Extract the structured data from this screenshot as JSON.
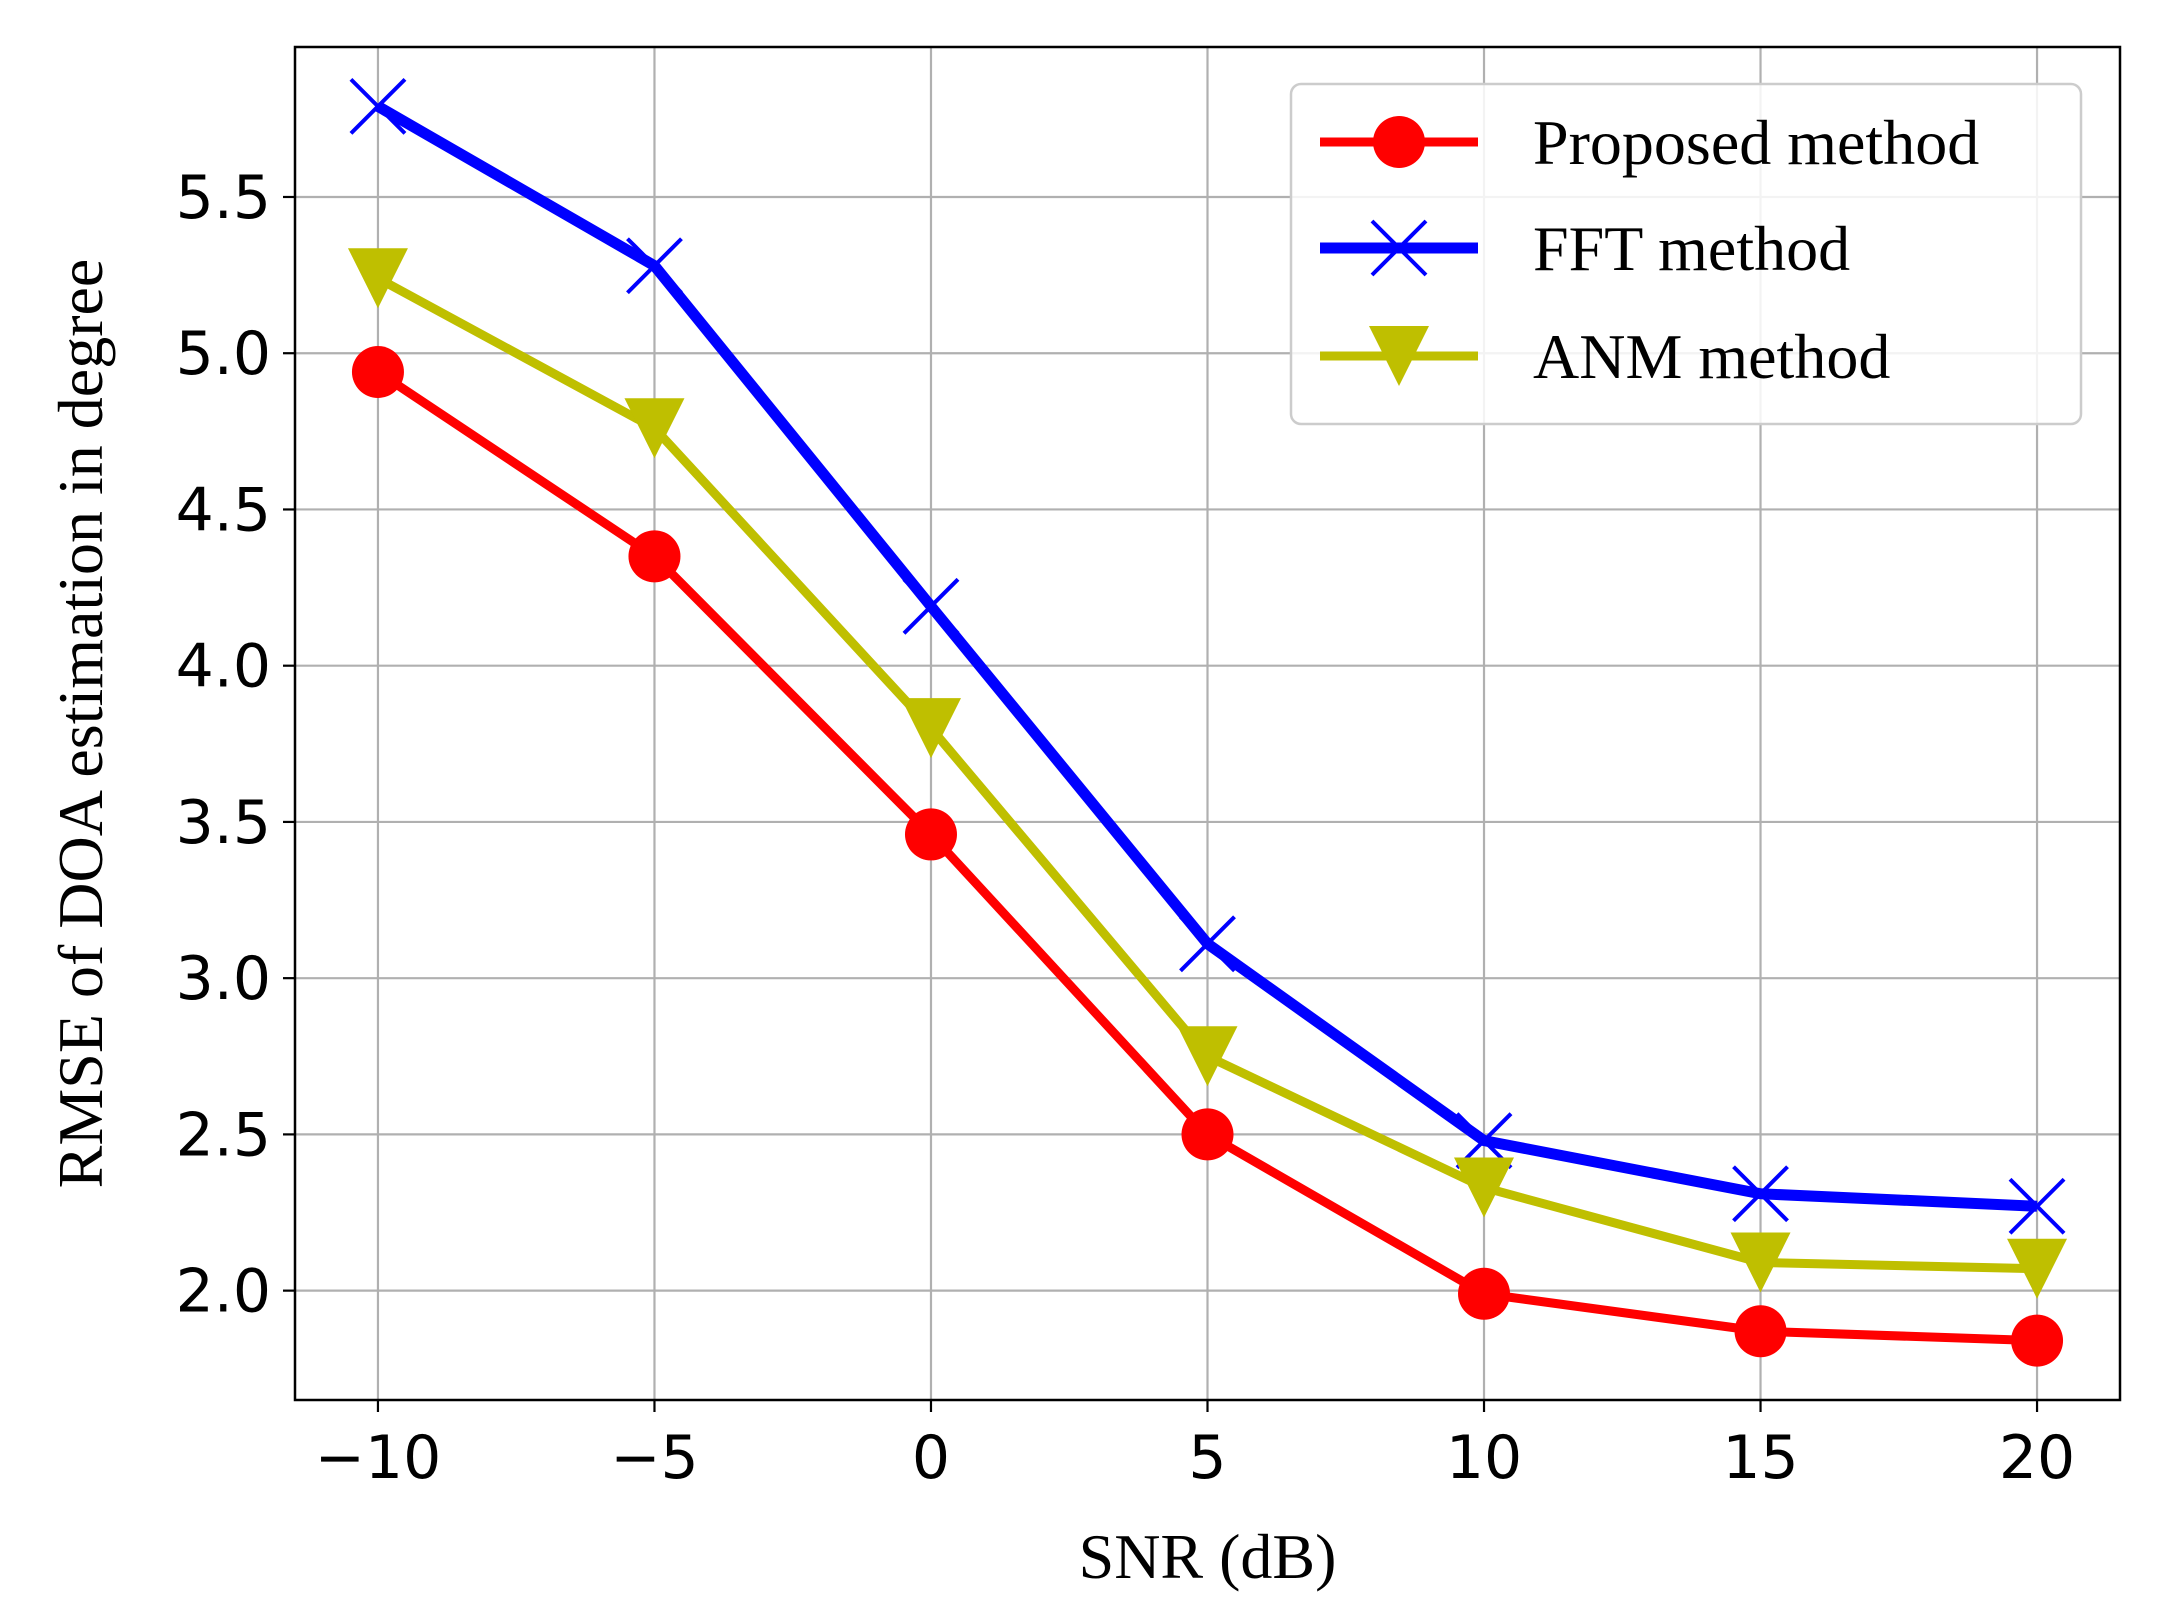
{
  "chart_data": {
    "type": "line",
    "xlabel": "SNR (dB)",
    "ylabel": "RMSE of DOA estimation in degree",
    "x": [
      -10,
      -5,
      0,
      5,
      10,
      15,
      20
    ],
    "xticks": [
      -10,
      -5,
      0,
      5,
      10,
      15,
      20
    ],
    "xtick_labels": [
      "−10",
      "−5",
      "0",
      "5",
      "10",
      "15",
      "20"
    ],
    "yticks": [
      2.0,
      2.5,
      3.0,
      3.5,
      4.0,
      4.5,
      5.0,
      5.5
    ],
    "ytick_labels": [
      "2.0",
      "2.5",
      "3.0",
      "3.5",
      "4.0",
      "4.5",
      "5.0",
      "5.5"
    ],
    "xlim": [
      -11.5,
      21.5
    ],
    "ylim": [
      1.65,
      5.98
    ],
    "grid": true,
    "legend_position": "top-right",
    "series": [
      {
        "name": "Proposed method",
        "color": "#ff0000",
        "marker": "circle",
        "values": [
          4.94,
          4.35,
          3.46,
          2.5,
          1.99,
          1.87,
          1.84
        ]
      },
      {
        "name": "FFT method",
        "color": "#0000ff",
        "marker": "x",
        "values": [
          5.79,
          5.28,
          4.19,
          3.11,
          2.48,
          2.31,
          2.27
        ]
      },
      {
        "name": "ANM method",
        "color": "#bfbf00",
        "marker": "triangle-down",
        "values": [
          5.24,
          4.76,
          3.8,
          2.75,
          2.33,
          2.09,
          2.07
        ]
      }
    ]
  }
}
